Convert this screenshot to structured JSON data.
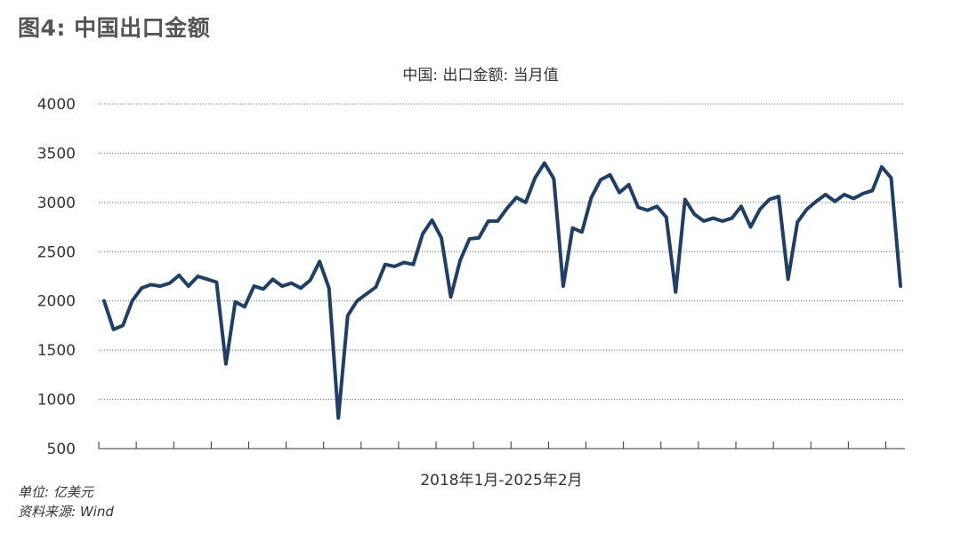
{
  "figure_title": "图4: 中国出口金额",
  "unit_note": "单位: 亿美元",
  "source_note": "资料来源: Wind",
  "chart_data": {
    "type": "line",
    "title": "中国: 出口金额: 当月值",
    "xlabel": "2018年1月-2025年2月",
    "ylabel": "",
    "ylim": [
      500,
      4000
    ],
    "yticks": [
      4000,
      3500,
      3000,
      2500,
      2000,
      1500,
      1000,
      500
    ],
    "grid": "horizontal-dotted",
    "line_color": "#1f3f66",
    "series": [
      {
        "values": [
          2000,
          1710,
          1750,
          2000,
          2130,
          2165,
          2150,
          2180,
          2260,
          2150,
          2250,
          2220,
          2190,
          1360,
          1990,
          1940,
          2150,
          2120,
          2220,
          2150,
          2180,
          2130,
          2210,
          2400,
          2130,
          810,
          1850,
          2000,
          2070,
          2140,
          2370,
          2350,
          2390,
          2370,
          2680,
          2820,
          2640,
          2040,
          2410,
          2630,
          2640,
          2810,
          2810,
          2940,
          3050,
          3000,
          3250,
          3400,
          3240,
          2150,
          2740,
          2700,
          3050,
          3230,
          3280,
          3100,
          3180,
          2950,
          2920,
          2960,
          2850,
          2090,
          3030,
          2880,
          2810,
          2840,
          2810,
          2840,
          2960,
          2750,
          2930,
          3030,
          3060,
          2220,
          2800,
          2930,
          3010,
          3080,
          3010,
          3080,
          3040,
          3090,
          3120,
          3360,
          3250,
          2150
        ]
      }
    ]
  }
}
